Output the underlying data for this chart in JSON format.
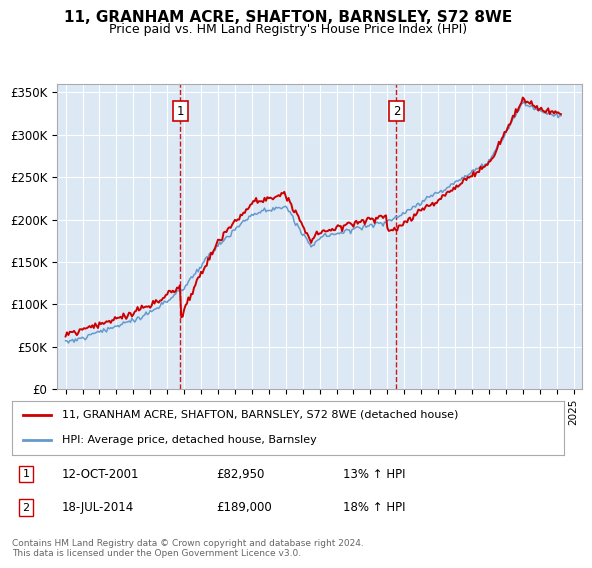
{
  "title": "11, GRANHAM ACRE, SHAFTON, BARNSLEY, S72 8WE",
  "subtitle": "Price paid vs. HM Land Registry's House Price Index (HPI)",
  "fig_bg_color": "#ffffff",
  "plot_bg_color": "#dce9f5",
  "ylim": [
    0,
    360000
  ],
  "yticks": [
    0,
    50000,
    100000,
    150000,
    200000,
    250000,
    300000,
    350000
  ],
  "ytick_labels": [
    "£0",
    "£50K",
    "£100K",
    "£150K",
    "£200K",
    "£250K",
    "£300K",
    "£350K"
  ],
  "xlim_start": 1994.5,
  "xlim_end": 2025.5,
  "transactions": [
    {
      "date": "12-OCT-2001",
      "year": 2001.78,
      "price": 82950,
      "label": "1",
      "pct": "13% ↑ HPI"
    },
    {
      "date": "18-JUL-2014",
      "year": 2014.54,
      "price": 189000,
      "label": "2",
      "pct": "18% ↑ HPI"
    }
  ],
  "legend_line1": "11, GRANHAM ACRE, SHAFTON, BARNSLEY, S72 8WE (detached house)",
  "legend_line2": "HPI: Average price, detached house, Barnsley",
  "footer": "Contains HM Land Registry data © Crown copyright and database right 2024.\nThis data is licensed under the Open Government Licence v3.0.",
  "red_color": "#cc0000",
  "blue_color": "#6699cc"
}
